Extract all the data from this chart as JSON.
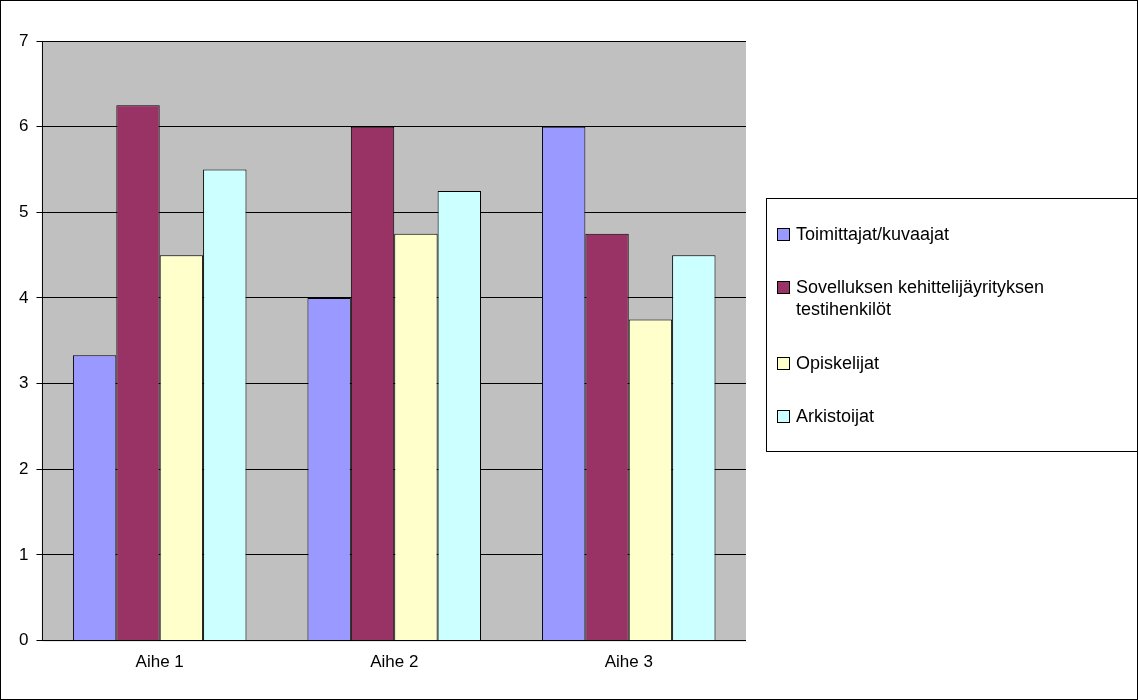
{
  "chart_data": {
    "type": "bar",
    "categories": [
      "Aihe 1",
      "Aihe 2",
      "Aihe 3"
    ],
    "series": [
      {
        "name": "Toimittajat/kuvaajat",
        "color": "#9999ff",
        "values": [
          3.33,
          4,
          6
        ]
      },
      {
        "name": "Sovelluksen kehittelijäyrityksen testihenkilöt",
        "color": "#993366",
        "values": [
          6.25,
          6,
          4.75
        ]
      },
      {
        "name": "Opiskelijat",
        "color": "#ffffcc",
        "values": [
          4.5,
          4.75,
          3.75
        ]
      },
      {
        "name": "Arkistoijat",
        "color": "#ccffff",
        "values": [
          5.5,
          5.25,
          4.5
        ]
      }
    ],
    "ylim": [
      0,
      7
    ],
    "yticks": [
      0,
      1,
      2,
      3,
      4,
      5,
      6,
      7
    ],
    "grid": "y",
    "legend": "right"
  }
}
